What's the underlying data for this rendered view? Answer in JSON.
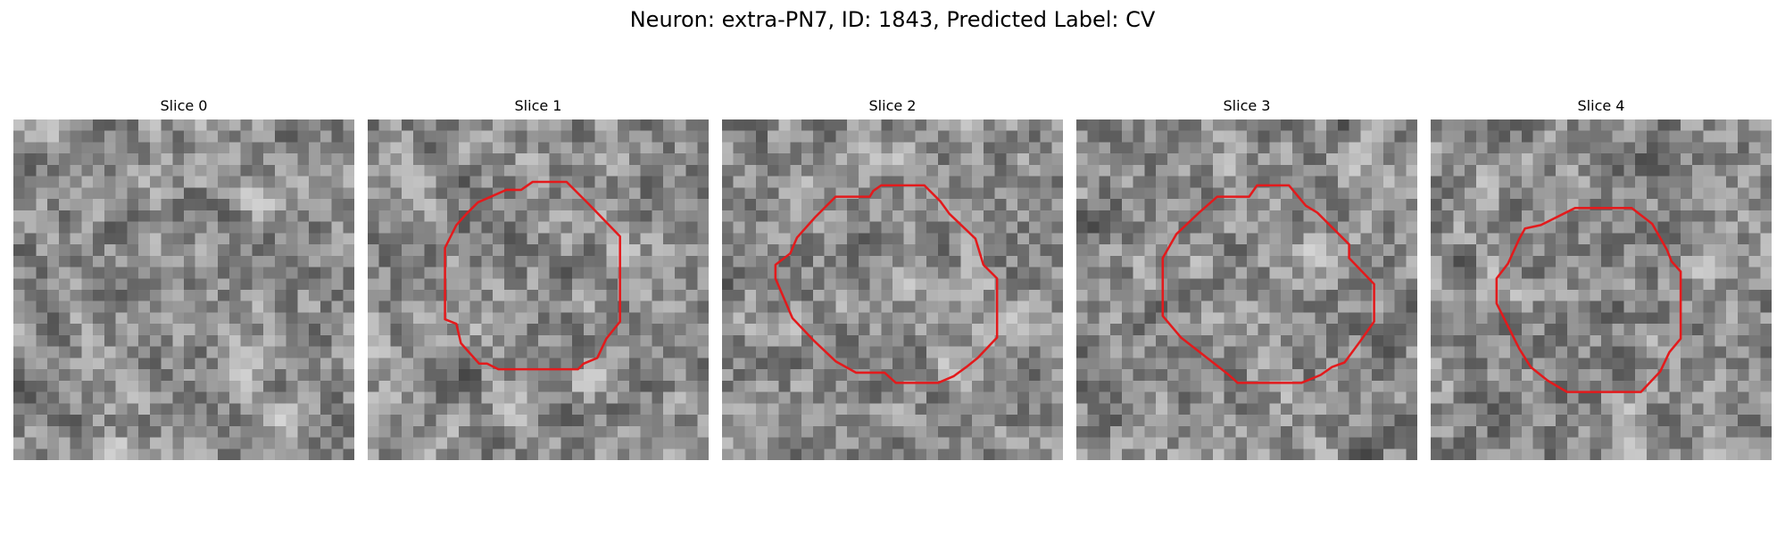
{
  "figure": {
    "title": "Neuron: extra-PN7, ID: 1843, Predicted Label: CV"
  },
  "panels": [
    {
      "title": "Slice 0",
      "contour": false
    },
    {
      "title": "Slice 1",
      "contour": true
    },
    {
      "title": "Slice 2",
      "contour": true
    },
    {
      "title": "Slice 3",
      "contour": true
    },
    {
      "title": "Slice 4",
      "contour": true
    }
  ],
  "colors": {
    "contour": "#e31a1c",
    "background": "#ffffff"
  }
}
